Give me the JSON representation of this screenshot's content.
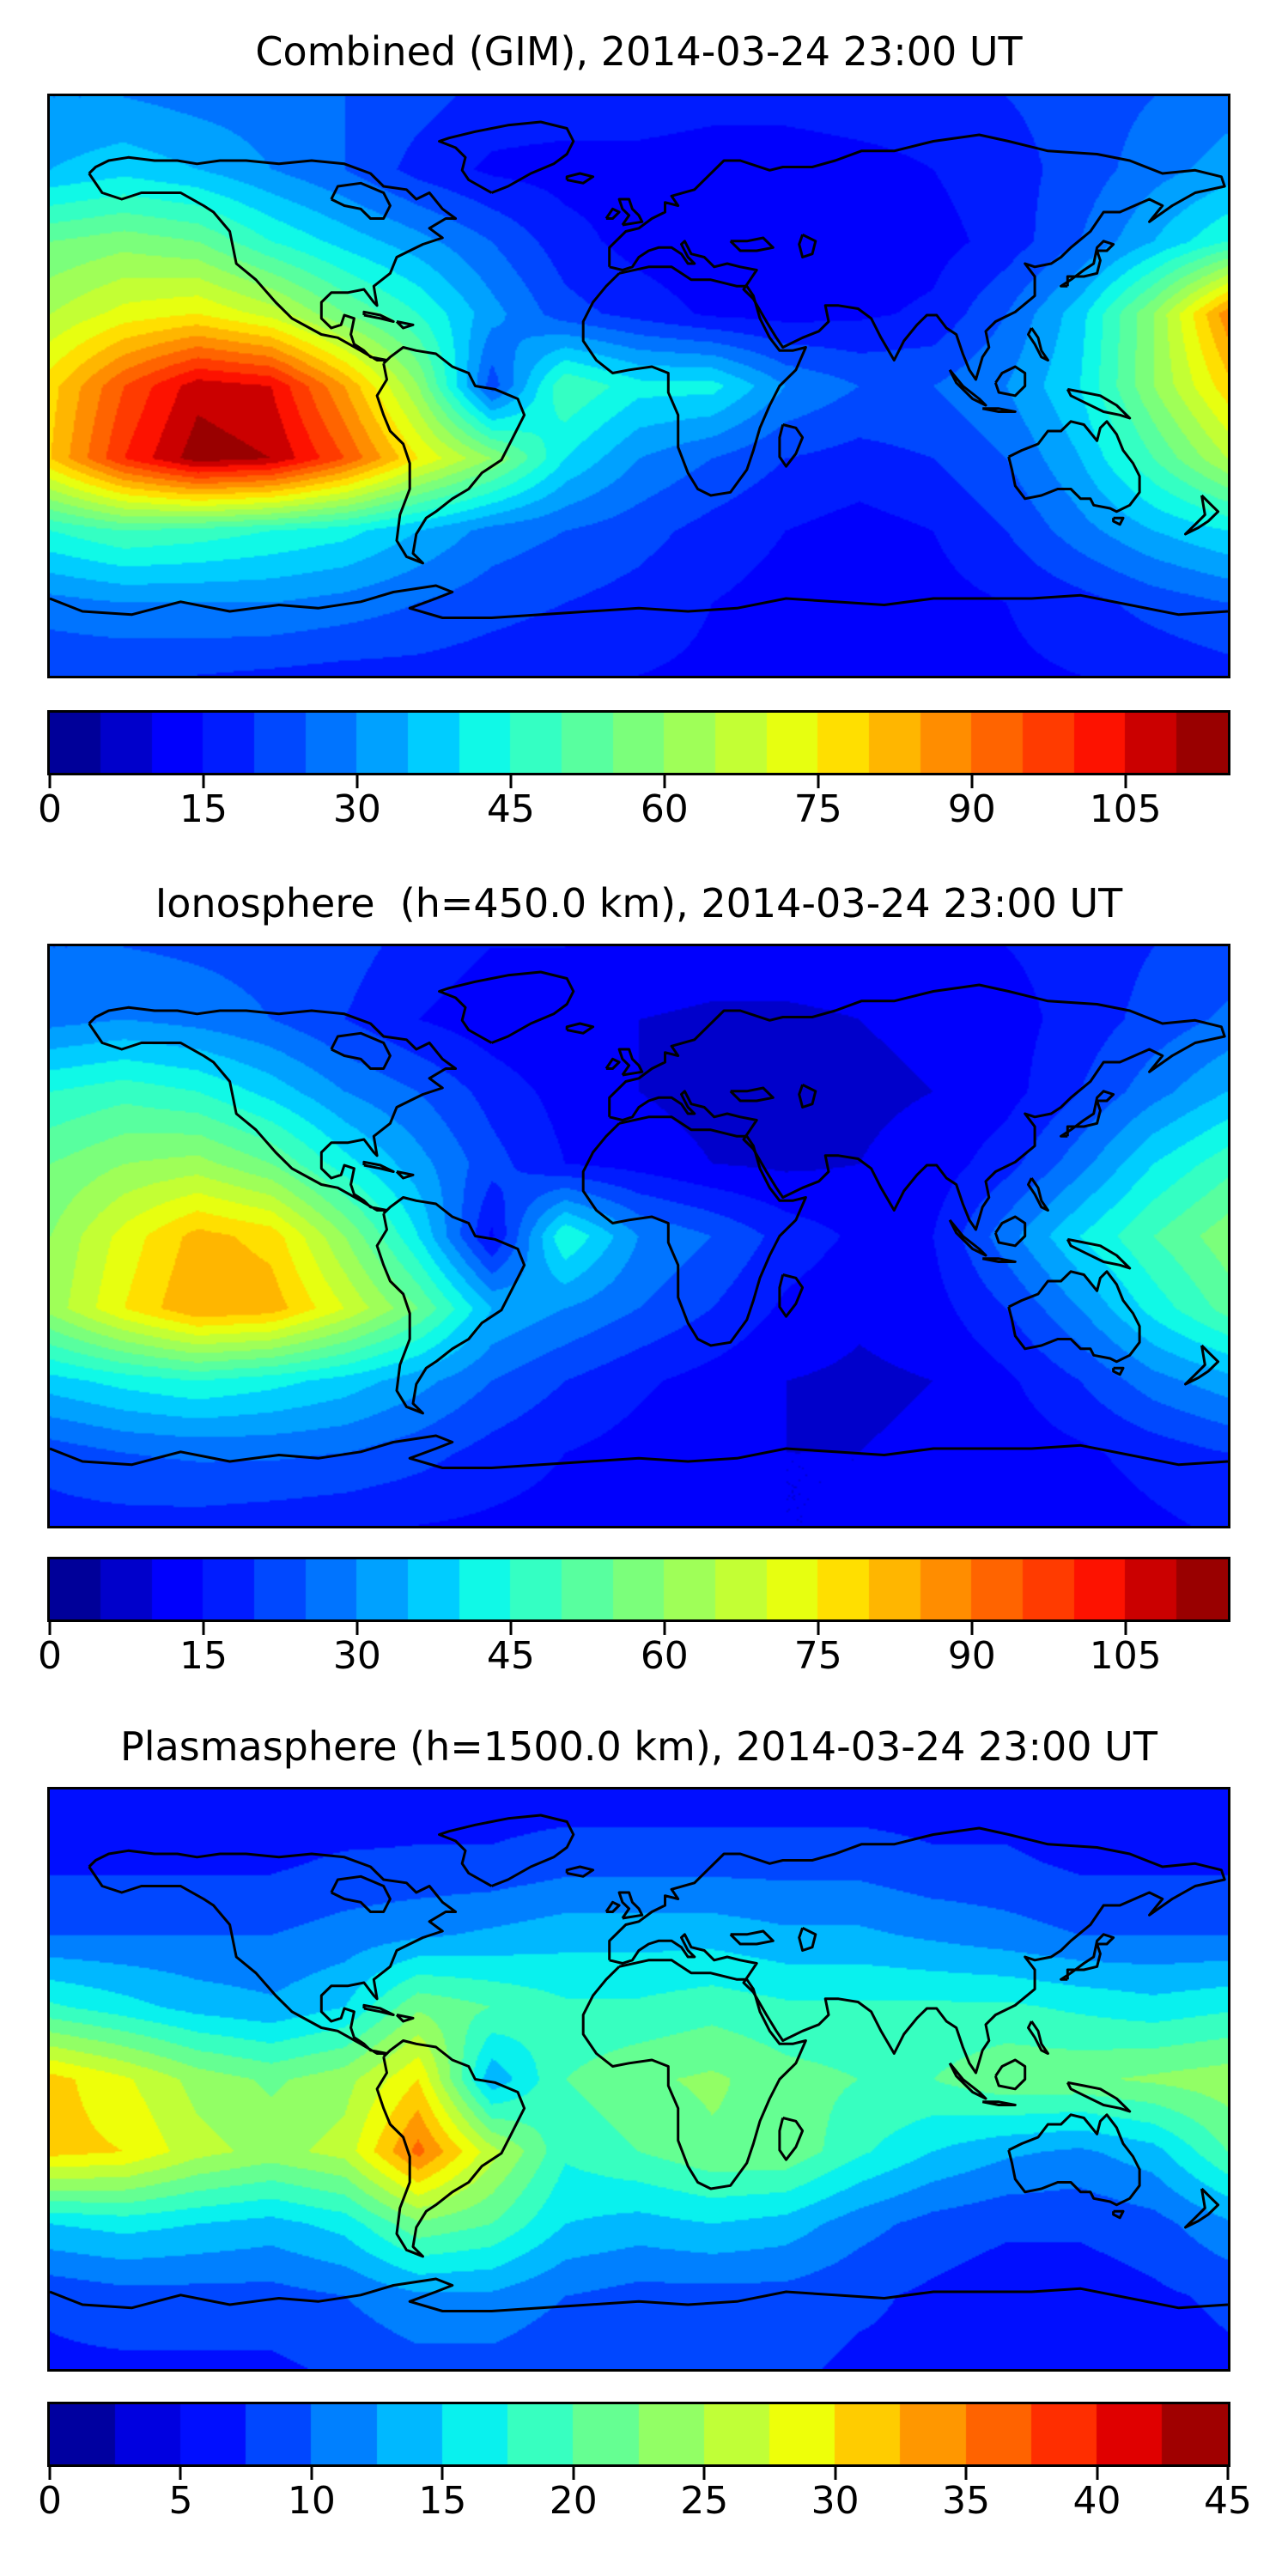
{
  "figure": {
    "background": "#ffffff",
    "text_color": "#000000",
    "colormap_accent_low": "#000099",
    "colormap_accent_high": "#990000"
  },
  "chart_data": [
    {
      "type": "heatmap",
      "title": "Combined (GIM), 2014-03-24 23:00 UT",
      "colormap": "jet",
      "projection": "equirectangular",
      "lon_range": [
        -180,
        180
      ],
      "lat_range": [
        -90,
        90
      ],
      "levels_min": 0,
      "levels_max": 115,
      "level_step": 5,
      "colorbar_ticks": [
        0,
        15,
        30,
        45,
        60,
        75,
        90,
        105
      ],
      "lon": [
        -180,
        -157.5,
        -135,
        -112.5,
        -90,
        -67.5,
        -45,
        -22.5,
        0,
        22.5,
        45,
        67.5,
        90,
        112.5,
        135,
        157.5,
        180
      ],
      "lat": [
        90,
        67.5,
        45,
        22.5,
        0,
        -22.5,
        -45,
        -67.5,
        -90
      ],
      "values": [
        [
          30,
          30,
          28,
          27,
          25,
          22,
          18,
          18,
          18,
          17,
          17,
          18,
          18,
          20,
          22,
          25,
          28
        ],
        [
          35,
          38,
          35,
          30,
          25,
          18,
          14,
          13,
          13,
          12,
          12,
          13,
          15,
          18,
          22,
          28,
          32
        ],
        [
          55,
          58,
          55,
          45,
          38,
          32,
          25,
          17,
          13,
          11,
          11,
          12,
          13,
          17,
          25,
          35,
          45
        ],
        [
          65,
          72,
          75,
          68,
          55,
          45,
          32,
          22,
          18,
          14,
          13,
          14,
          16,
          25,
          38,
          60,
          88
        ],
        [
          78,
          95,
          108,
          105,
          85,
          60,
          22,
          50,
          42,
          42,
          30,
          25,
          25,
          30,
          40,
          60,
          78
        ],
        [
          80,
          100,
          113,
          110,
          95,
          75,
          60,
          40,
          30,
          25,
          20,
          18,
          20,
          25,
          35,
          50,
          65
        ],
        [
          45,
          50,
          48,
          45,
          42,
          35,
          28,
          25,
          22,
          18,
          15,
          13,
          15,
          20,
          28,
          35,
          40
        ],
        [
          28,
          30,
          30,
          30,
          28,
          25,
          22,
          20,
          18,
          15,
          13,
          12,
          13,
          15,
          18,
          22,
          25
        ],
        [
          20,
          20,
          20,
          19,
          18,
          18,
          17,
          16,
          15,
          14,
          13,
          13,
          13,
          14,
          15,
          16,
          18
        ]
      ]
    },
    {
      "type": "heatmap",
      "title": "Ionosphere  (h=450.0 km), 2014-03-24 23:00 UT",
      "colormap": "jet",
      "projection": "equirectangular",
      "lon_range": [
        -180,
        180
      ],
      "lat_range": [
        -90,
        90
      ],
      "levels_min": 0,
      "levels_max": 115,
      "level_step": 5,
      "colorbar_ticks": [
        0,
        15,
        30,
        45,
        60,
        75,
        90,
        105
      ],
      "lon": [
        -180,
        -157.5,
        -135,
        -112.5,
        -90,
        -67.5,
        -45,
        -22.5,
        0,
        22.5,
        45,
        67.5,
        90,
        112.5,
        135,
        157.5,
        180
      ],
      "lat": [
        90,
        67.5,
        45,
        22.5,
        0,
        -22.5,
        -45,
        -67.5,
        -90
      ],
      "values": [
        [
          25,
          25,
          24,
          23,
          22,
          18,
          15,
          15,
          14,
          13,
          13,
          13,
          14,
          15,
          17,
          20,
          22
        ],
        [
          28,
          30,
          28,
          25,
          20,
          15,
          12,
          10,
          10,
          9,
          9,
          10,
          11,
          13,
          17,
          22,
          26
        ],
        [
          45,
          48,
          45,
          38,
          30,
          25,
          18,
          13,
          10,
          8,
          8,
          9,
          10,
          13,
          20,
          28,
          35
        ],
        [
          55,
          60,
          62,
          55,
          42,
          32,
          22,
          15,
          13,
          10,
          9,
          10,
          12,
          18,
          28,
          40,
          48
        ],
        [
          60,
          72,
          82,
          78,
          60,
          40,
          14,
          45,
          30,
          25,
          18,
          14,
          15,
          28,
          40,
          50,
          58
        ],
        [
          62,
          75,
          85,
          83,
          70,
          55,
          35,
          30,
          25,
          20,
          14,
          11,
          13,
          20,
          30,
          42,
          52
        ],
        [
          38,
          42,
          45,
          42,
          38,
          32,
          25,
          20,
          16,
          13,
          10,
          9,
          10,
          14,
          20,
          28,
          33
        ],
        [
          22,
          25,
          26,
          26,
          25,
          22,
          18,
          15,
          13,
          11,
          10,
          10,
          11,
          12,
          14,
          17,
          20
        ],
        [
          18,
          18,
          18,
          17,
          16,
          15,
          14,
          13,
          12,
          11,
          10,
          10,
          10,
          11,
          12,
          14,
          16
        ]
      ]
    },
    {
      "type": "heatmap",
      "title": "Plasmasphere (h=1500.0 km), 2014-03-24 23:00 UT",
      "colormap": "jet",
      "projection": "equirectangular",
      "lon_range": [
        -180,
        180
      ],
      "lat_range": [
        -90,
        90
      ],
      "levels_min": 0,
      "levels_max": 45,
      "level_step": 2.5,
      "colorbar_ticks": [
        0,
        5,
        10,
        15,
        20,
        25,
        30,
        35,
        40,
        45
      ],
      "lon": [
        -180,
        -157.5,
        -135,
        -112.5,
        -90,
        -67.5,
        -45,
        -22.5,
        0,
        22.5,
        45,
        67.5,
        90,
        112.5,
        135,
        157.5,
        180
      ],
      "lat": [
        90,
        67.5,
        45,
        22.5,
        0,
        -22.5,
        -45,
        -67.5,
        -90
      ],
      "values": [
        [
          5,
          5,
          5,
          5,
          5,
          6,
          6,
          6,
          6,
          6,
          6,
          6,
          6,
          6,
          5,
          5,
          5
        ],
        [
          7,
          7,
          7,
          7,
          8,
          8,
          8,
          9,
          9,
          9,
          9,
          9,
          8,
          8,
          7,
          7,
          7
        ],
        [
          10,
          10,
          10,
          10,
          11,
          12,
          13,
          14,
          14,
          14,
          13,
          13,
          12,
          11,
          10,
          10,
          10
        ],
        [
          18,
          16,
          14,
          13,
          15,
          22,
          20,
          18,
          18,
          19,
          18,
          18,
          18,
          18,
          17,
          16,
          17
        ],
        [
          31,
          28,
          24,
          22,
          24,
          30,
          13,
          20,
          22,
          23,
          21,
          20,
          20,
          22,
          22,
          23,
          24
        ],
        [
          31,
          30,
          26,
          24,
          26,
          36,
          26,
          18,
          20,
          22,
          22,
          18,
          15,
          13,
          12,
          14,
          20
        ],
        [
          15,
          16,
          15,
          14,
          16,
          22,
          20,
          15,
          14,
          15,
          14,
          11,
          9,
          8,
          8,
          9,
          12
        ],
        [
          8,
          9,
          9,
          9,
          10,
          12,
          12,
          10,
          9,
          9,
          9,
          8,
          7,
          6,
          6,
          7,
          8
        ],
        [
          7,
          7,
          7,
          7,
          8,
          9,
          9,
          8,
          8,
          8,
          8,
          7,
          7,
          6,
          6,
          6,
          7
        ]
      ]
    }
  ]
}
